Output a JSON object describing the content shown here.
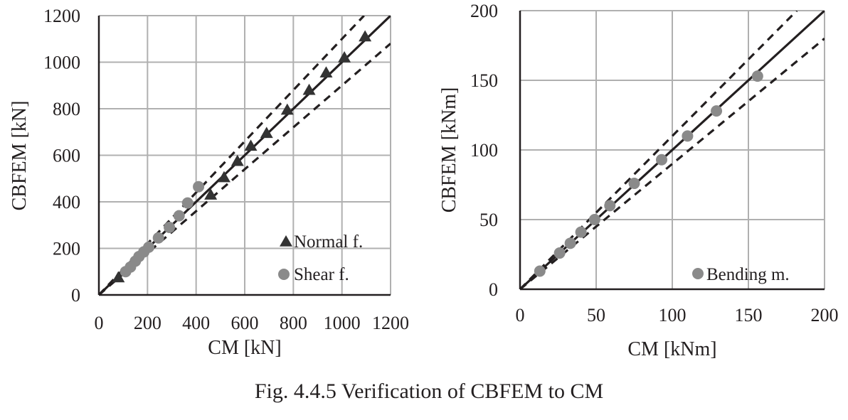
{
  "caption": "Fig. 4.4.5 Verification of CBFEM to CM",
  "colors": {
    "axis": "#231f20",
    "grid": "#b0b0b0",
    "normal": "#333333",
    "shear": "#8a8a8a",
    "bending": "#8a8a8a"
  },
  "chart_data": [
    {
      "type": "scatter",
      "xlabel": "CM [kN]",
      "ylabel": "CBFEM [kN]",
      "xlim": [
        0,
        1200
      ],
      "ylim": [
        0,
        1200
      ],
      "xticks": [
        "0",
        "200",
        "400",
        "600",
        "800",
        "1000",
        "1200"
      ],
      "yticks": [
        "0",
        "200",
        "400",
        "600",
        "800",
        "1000",
        "1200"
      ],
      "grid": true,
      "legend_position": "bottom-right",
      "reference_lines": [
        {
          "style": "solid",
          "factor": 1.0
        },
        {
          "style": "dashed",
          "factor": 1.1
        },
        {
          "style": "dashed",
          "factor": 0.9
        }
      ],
      "series": [
        {
          "name": "Normal f.",
          "marker": "triangle",
          "x": [
            80,
            460,
            515,
            570,
            625,
            690,
            775,
            865,
            935,
            1010,
            1095
          ],
          "y": [
            75,
            430,
            505,
            575,
            640,
            695,
            795,
            880,
            955,
            1020,
            1110
          ]
        },
        {
          "name": "Shear f.",
          "marker": "circle",
          "x": [
            110,
            130,
            150,
            165,
            185,
            205,
            245,
            290,
            330,
            365,
            410
          ],
          "y": [
            100,
            120,
            145,
            165,
            185,
            205,
            245,
            290,
            340,
            395,
            465
          ]
        }
      ]
    },
    {
      "type": "scatter",
      "xlabel": "CM [kNm]",
      "ylabel": "CBFEM [kNm]",
      "xlim": [
        0,
        200
      ],
      "ylim": [
        0,
        200
      ],
      "xticks": [
        "0",
        "50",
        "100",
        "150",
        "200"
      ],
      "yticks": [
        "0",
        "50",
        "100",
        "150",
        "200"
      ],
      "grid": true,
      "legend_position": "bottom-right",
      "reference_lines": [
        {
          "style": "solid",
          "factor": 1.0
        },
        {
          "style": "dashed",
          "factor": 1.1
        },
        {
          "style": "dashed",
          "factor": 0.9
        }
      ],
      "series": [
        {
          "name": "Bending m.",
          "marker": "circle",
          "x": [
            13,
            26,
            33,
            40,
            49,
            59,
            75,
            93,
            110,
            129,
            156
          ],
          "y": [
            13,
            26,
            33,
            41,
            50,
            60,
            76,
            93,
            110,
            128,
            153
          ]
        }
      ]
    }
  ]
}
